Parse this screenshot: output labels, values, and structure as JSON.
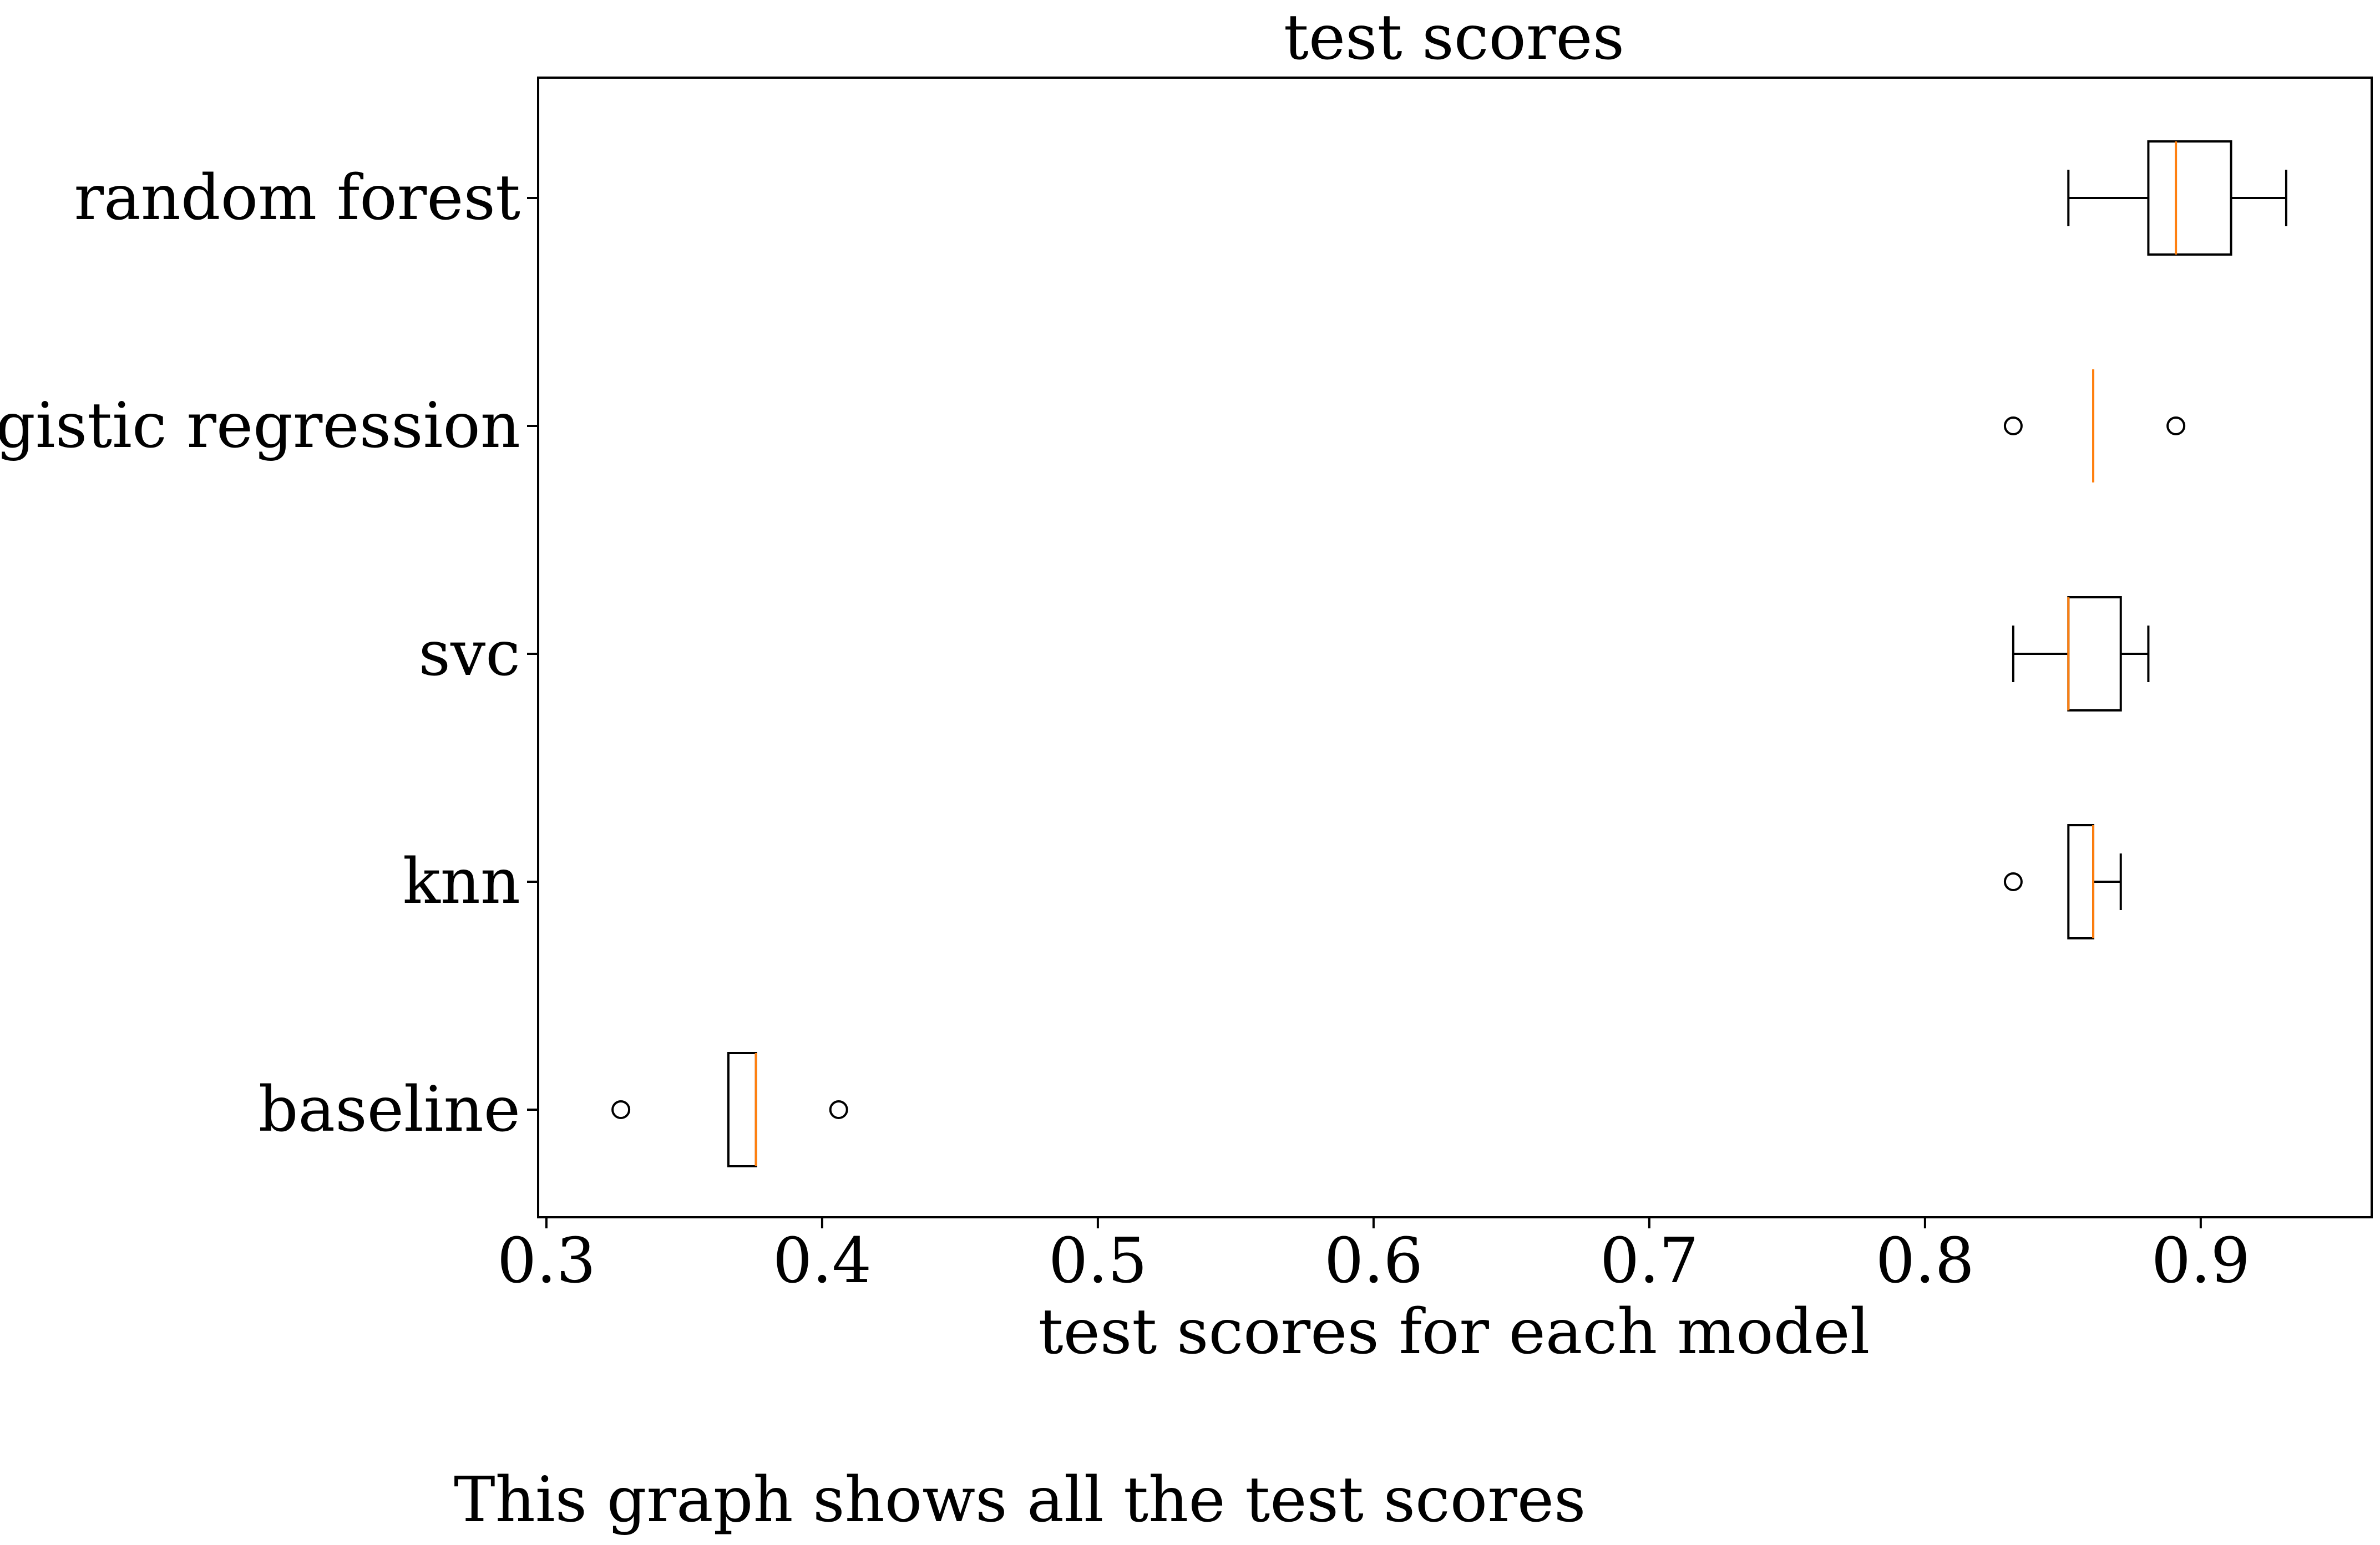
{
  "chart_data": {
    "type": "boxplot",
    "orientation": "horizontal",
    "title": "test scores",
    "xlabel": "test scores for each model",
    "ylabel": "",
    "xlim": [
      0.297,
      0.962
    ],
    "xticks": [
      0.3,
      0.4,
      0.5,
      0.6,
      0.7,
      0.8,
      0.9
    ],
    "xtick_labels": [
      "0.3",
      "0.4",
      "0.5",
      "0.6",
      "0.7",
      "0.8",
      "0.9"
    ],
    "grid": false,
    "categories": [
      "random forest",
      "logistic regression",
      "svc",
      "knn",
      "baseline"
    ],
    "boxes": [
      {
        "name": "random forest",
        "whisker_low": 0.852,
        "q1": 0.881,
        "median": 0.891,
        "q3": 0.911,
        "whisker_high": 0.931,
        "outliers": []
      },
      {
        "name": "logistic regression",
        "whisker_low": 0.861,
        "q1": 0.861,
        "median": 0.861,
        "q3": 0.861,
        "whisker_high": 0.861,
        "outliers": [
          0.832,
          0.891
        ]
      },
      {
        "name": "svc",
        "whisker_low": 0.832,
        "q1": 0.852,
        "median": 0.852,
        "q3": 0.871,
        "whisker_high": 0.881,
        "outliers": []
      },
      {
        "name": "knn",
        "whisker_low": 0.852,
        "q1": 0.852,
        "median": 0.861,
        "q3": 0.861,
        "whisker_high": 0.871,
        "outliers": [
          0.832
        ]
      },
      {
        "name": "baseline",
        "whisker_low": 0.366,
        "q1": 0.366,
        "median": 0.376,
        "q3": 0.376,
        "whisker_high": 0.376,
        "outliers": [
          0.327,
          0.406
        ]
      }
    ],
    "colors": {
      "box": "#000000",
      "median": "#ff7f0e"
    }
  },
  "caption": "This graph shows all the test scores"
}
